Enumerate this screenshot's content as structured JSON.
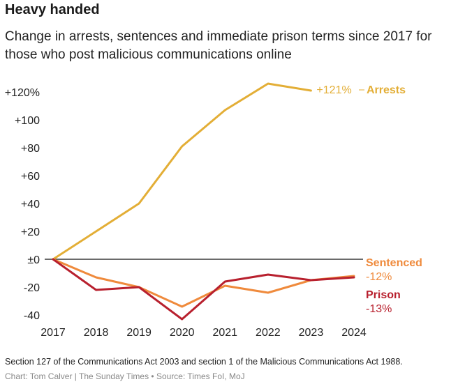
{
  "title": "Heavy handed",
  "subtitle": "Change in arrests, sentences and immediate prison terms since 2017 for those who post malicious communications online",
  "chart_data": {
    "type": "line",
    "title": "Heavy handed",
    "subtitle": "Change in arrests, sentences and immediate prison terms since 2017 for those who post malicious communications online",
    "x": [
      2017,
      2018,
      2019,
      2020,
      2021,
      2022,
      2023,
      2024
    ],
    "ylim": [
      -40,
      120
    ],
    "y_ticks": [
      -40,
      -20,
      0,
      20,
      40,
      60,
      80,
      100,
      120
    ],
    "y_tick_labels": [
      "-40",
      "-20",
      "±0",
      "+20",
      "+40",
      "+60",
      "+80",
      "+100",
      "+120%"
    ],
    "grid": false,
    "series": [
      {
        "name": "Arrests",
        "color": "#e3ae36",
        "x": [
          2017,
          2018,
          2019,
          2020,
          2021,
          2022,
          2023
        ],
        "values": [
          0,
          20,
          40,
          81,
          107,
          126,
          121
        ],
        "end_label": "+121%"
      },
      {
        "name": "Sentenced",
        "color": "#ef8a3c",
        "x": [
          2017,
          2018,
          2019,
          2020,
          2021,
          2022,
          2023,
          2024
        ],
        "values": [
          0,
          -13,
          -20,
          -34,
          -19,
          -24,
          -15,
          -12
        ],
        "end_label": "-12%"
      },
      {
        "name": "Prison",
        "color": "#b8202e",
        "x": [
          2017,
          2018,
          2019,
          2020,
          2021,
          2022,
          2023,
          2024
        ],
        "values": [
          0,
          -22,
          -20,
          -43,
          -16,
          -11,
          -15,
          -13
        ],
        "end_label": "-13%"
      }
    ]
  },
  "footnote": "Section 127 of the Communications Act 2003 and section 1 of the Malicious Communications Act 1988.",
  "credit": "Chart: Tom Calver | The Sunday Times • Source: Times FoI, MoJ"
}
